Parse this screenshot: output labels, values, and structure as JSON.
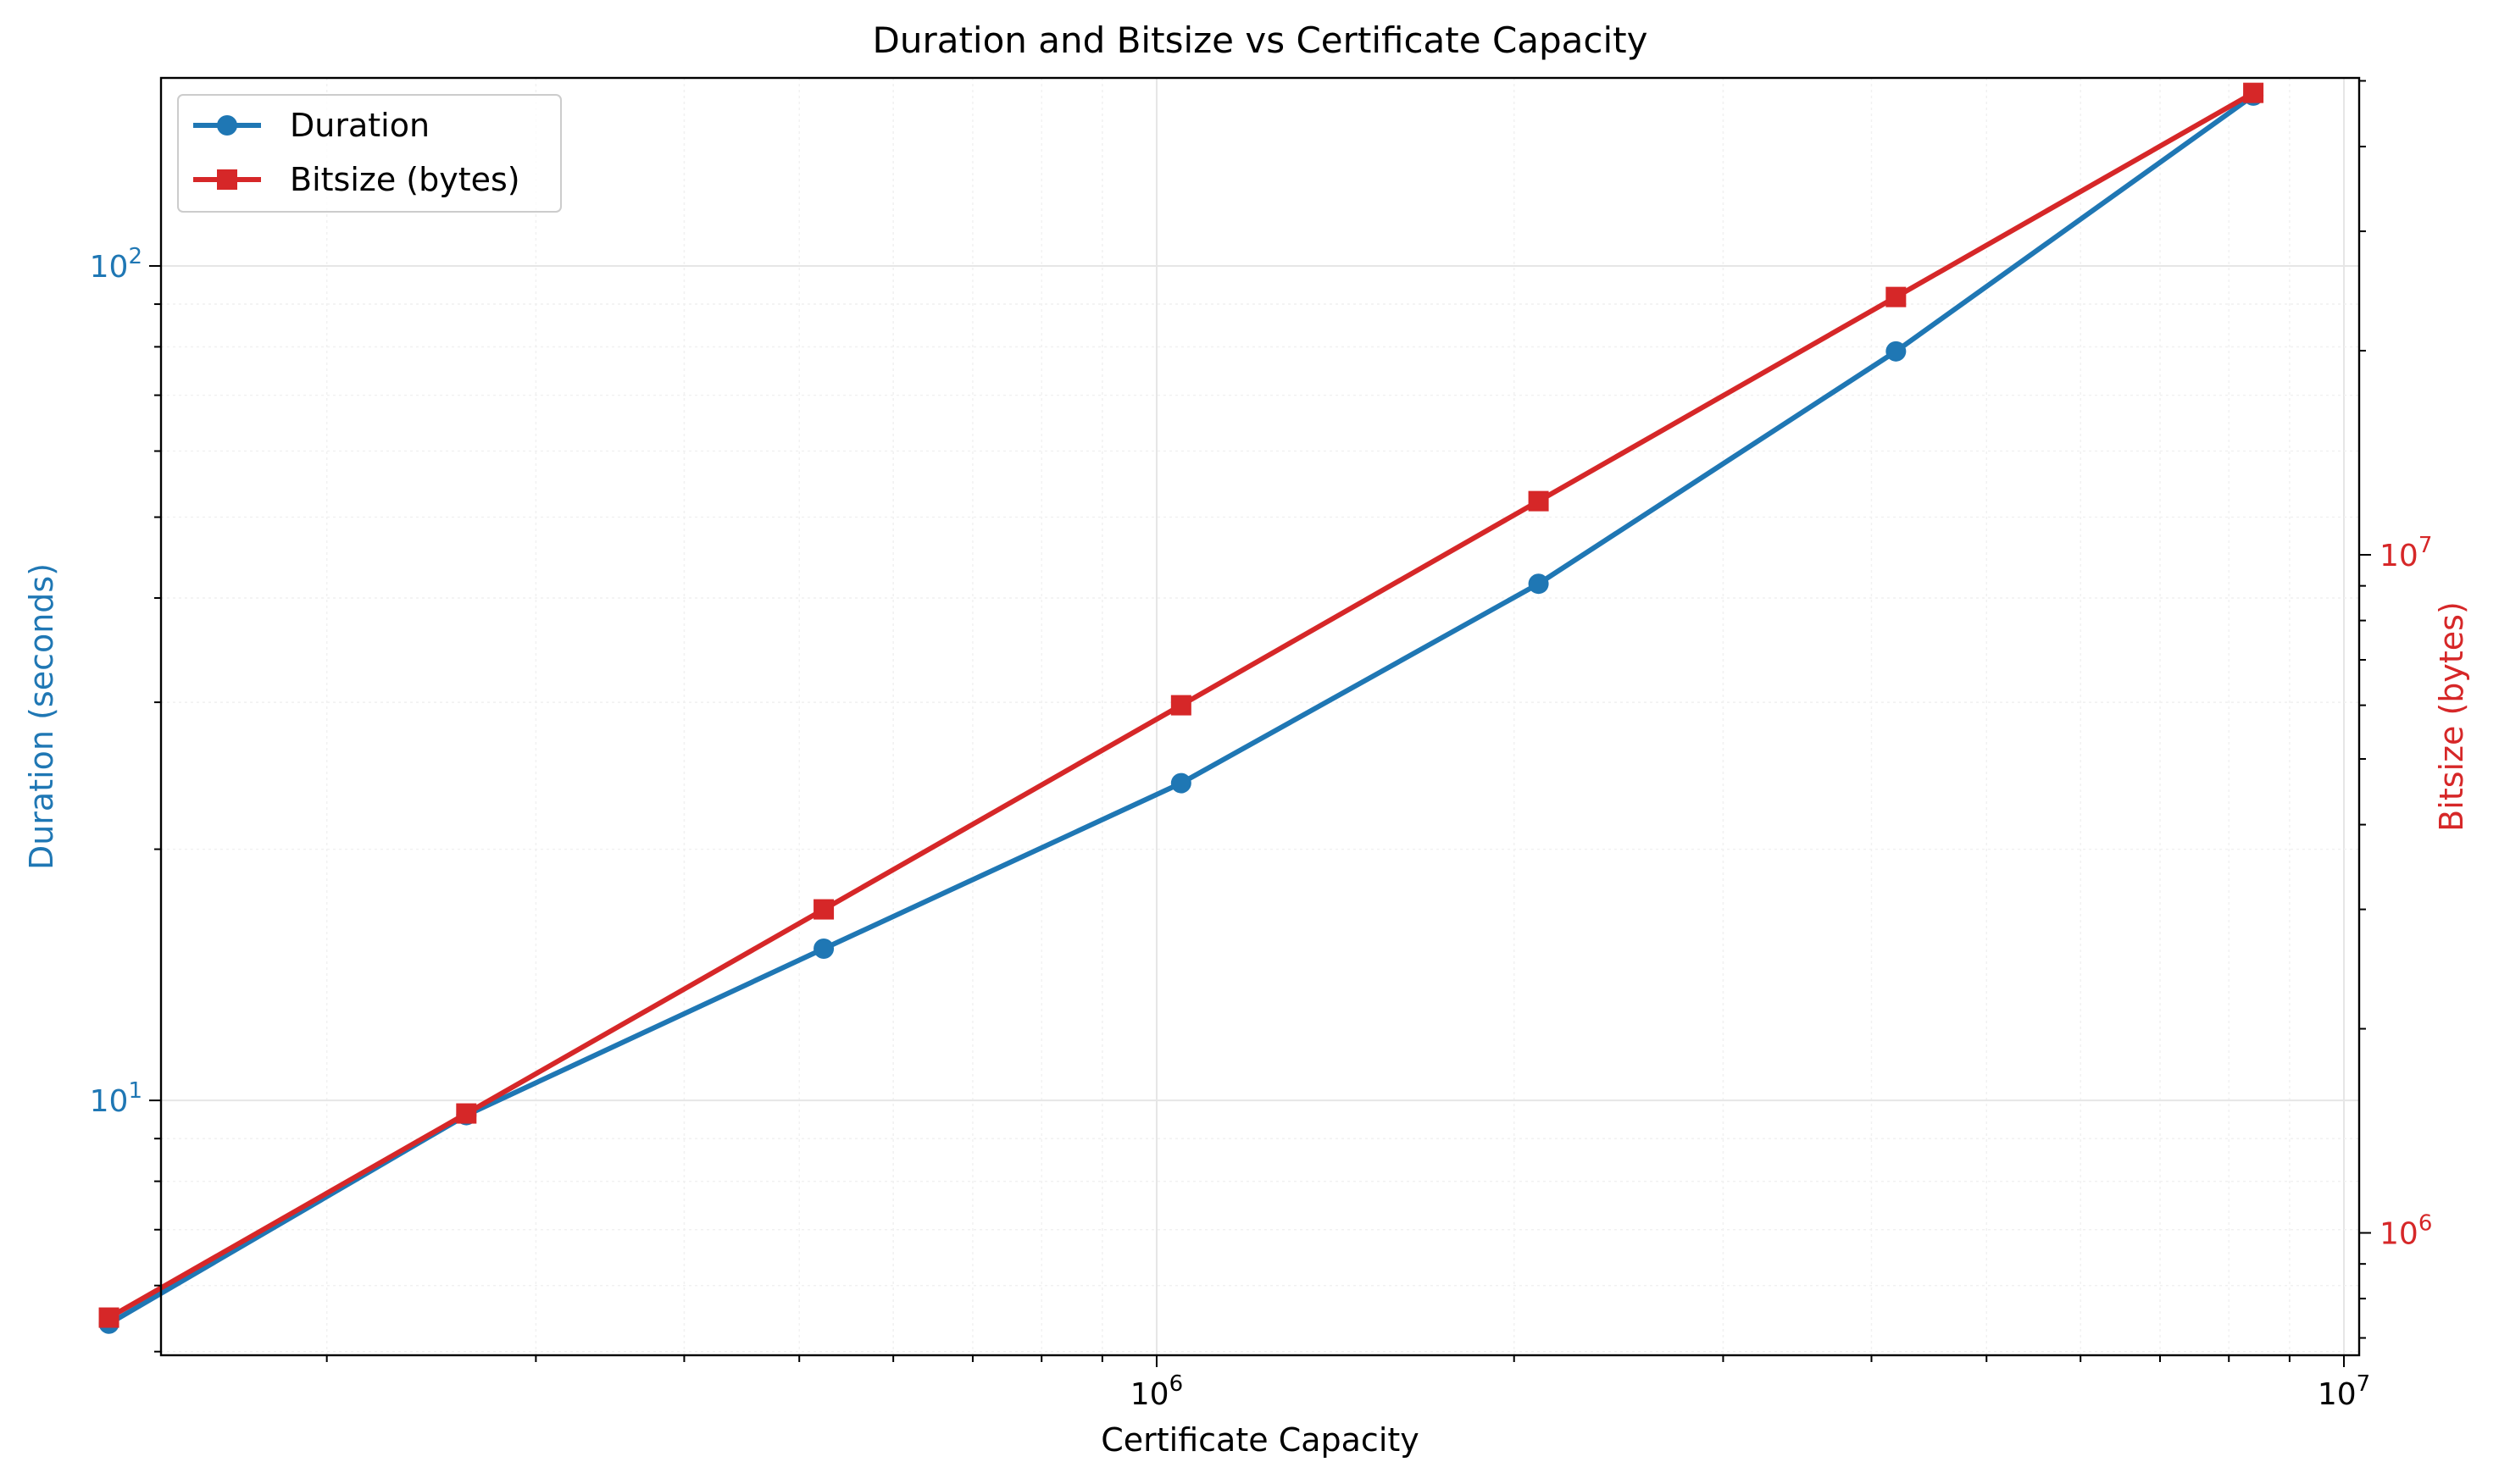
{
  "chart_data": {
    "type": "line",
    "title": "Duration and Bitsize vs Certificate Capacity",
    "xlabel": "Certificate Capacity",
    "ylabel_left": "Duration (seconds)",
    "ylabel_right": "Bitsize (bytes)",
    "x_scale": "log",
    "y_left_scale": "log",
    "y_right_scale": "log",
    "xlim": [
      145000,
      10300000
    ],
    "ylim_left": [
      4.95,
      168
    ],
    "ylim_right": [
      660000,
      50500000
    ],
    "x_ticks": [
      {
        "value": 1000000,
        "base": "10",
        "exp": "6"
      },
      {
        "value": 10000000,
        "base": "10",
        "exp": "7"
      }
    ],
    "y_left_ticks": [
      {
        "value": 10,
        "base": "10",
        "exp": "1"
      },
      {
        "value": 100,
        "base": "10",
        "exp": "2"
      }
    ],
    "y_right_ticks": [
      {
        "value": 1000000,
        "base": "10",
        "exp": "6"
      },
      {
        "value": 10000000,
        "base": "10",
        "exp": "7"
      }
    ],
    "grid": true,
    "legend_position": "top-left",
    "x": [
      131072,
      262144,
      524288,
      1048576,
      2097152,
      4194304,
      8388608
    ],
    "series": [
      {
        "name": "Duration",
        "axis": "left",
        "color": "#1f77b4",
        "marker": "circle",
        "values": [
          5.4,
          9.6,
          15.2,
          24.0,
          41.6,
          79.0,
          160.0
        ]
      },
      {
        "name": "Bitsize (bytes)",
        "axis": "right",
        "color": "#d62728",
        "marker": "square",
        "values": [
          750000,
          1500000,
          3000000,
          6000000,
          12000000,
          24000000,
          48000000
        ]
      }
    ],
    "colors": {
      "left_axis": "#1f77b4",
      "right_axis": "#d62728"
    }
  }
}
